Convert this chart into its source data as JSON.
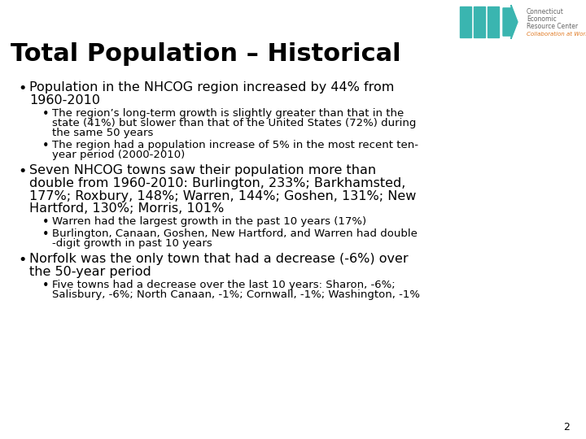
{
  "title": "Total Population – Historical",
  "title_fontsize": 22,
  "background_color": "#ffffff",
  "text_color": "#000000",
  "page_number": "2",
  "logo_color": "#3ab5b0",
  "logo_tagline_color": "#e07820",
  "logo_text_line1": "Connecticut",
  "logo_text_line2": "Economic",
  "logo_text_line3": "Resource Center",
  "logo_tagline": "Collaboration at Work",
  "main_bullet_fontsize": 11.5,
  "sub_bullet_fontsize": 9.5,
  "bullet1_main_l1": "Population in the NHCOG region increased by 44% from",
  "bullet1_main_l2": "1960-2010",
  "bullet1_sub1_l1": "The region’s long-term growth is slightly greater than that in the",
  "bullet1_sub1_l2": "state (41%) but slower than that of the United States (72%) during",
  "bullet1_sub1_l3": "the same 50 years",
  "bullet1_sub2_l1": "The region had a population increase of 5% in the most recent ten-",
  "bullet1_sub2_l2": "year period (2000-2010)",
  "bullet2_main_l1": "Seven NHCOG towns saw their population more than",
  "bullet2_main_l2": "double from 1960-2010: Burlington, 233%; Barkhamsted,",
  "bullet2_main_l3": "177%; Roxbury, 148%; Warren, 144%; Goshen, 131%; New",
  "bullet2_main_l4": "Hartford, 130%; Morris, 101%",
  "bullet2_sub1": "Warren had the largest growth in the past 10 years (17%)",
  "bullet2_sub2_l1": "Burlington, Canaan, Goshen, New Hartford, and Warren had double",
  "bullet2_sub2_l2": "-digit growth in past 10 years",
  "bullet3_main_l1": "Norfolk was the only town that had a decrease (-6%) over",
  "bullet3_main_l2": "the 50-year period",
  "bullet3_sub1_l1": "Five towns had a decrease over the last 10 years: Sharon, -6%;",
  "bullet3_sub1_l2": "Salisbury, -6%; North Canaan, -1%; Cornwall, -1%; Washington, -1%"
}
